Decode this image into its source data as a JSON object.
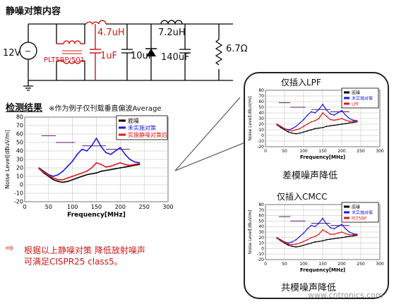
{
  "header": {
    "title": "静噪对策内容"
  },
  "circuit": {
    "source_label": "12V",
    "cmc_label": "PLT5BP/501",
    "l1_label": "4.7uH",
    "c1_label": "1uF",
    "c2_label": "10uF",
    "l2_label": "7.2uH",
    "c3_label": "140uF",
    "load_label": "6.7Ω",
    "colors": {
      "added_parts": "#d01818",
      "wire": "#000000"
    }
  },
  "results": {
    "title": "检测结果",
    "note": "※作为例子仅刊载垂直偏波Average",
    "conclusion_line1": "根据以上静噪对策 降低放射噪声",
    "conclusion_line2": "可满足CISPR25 class5。"
  },
  "callout": {
    "lpf_title": "仅插入LPF",
    "lpf_caption": "差模噪声降低",
    "cmcc_title": "仅插入CMCC",
    "cmcc_caption": "共模噪声降低"
  },
  "watermark": "www.cntronics.com",
  "chart_data": [
    {
      "type": "line",
      "title": "",
      "xlabel": "Frequency[MHz]",
      "ylabel": "Noise Level[dBuV/m]",
      "xlim": [
        0,
        300
      ],
      "ylim": [
        -20,
        80
      ],
      "xticks": [
        0,
        50,
        100,
        150,
        200,
        250,
        300
      ],
      "yticks": [
        -20,
        -10,
        0,
        10,
        20,
        30,
        40,
        50,
        60,
        70,
        80
      ],
      "limit_lines": [
        [
          35,
          65,
          58
        ],
        [
          65,
          105,
          50
        ],
        [
          120,
          170,
          46
        ],
        [
          170,
          220,
          42
        ]
      ],
      "series": [
        {
          "name": "底噪",
          "color": "#000000",
          "x": [
            30,
            40,
            50,
            60,
            70,
            80,
            90,
            100,
            110,
            120,
            130,
            140,
            150,
            160,
            170,
            180,
            190,
            200,
            210,
            220,
            230,
            240
          ],
          "y": [
            19,
            14,
            10,
            6,
            4,
            3,
            4,
            6,
            8,
            10,
            12,
            13,
            14,
            16,
            17,
            18,
            19,
            20,
            21,
            22,
            23,
            24
          ]
        },
        {
          "name": "未实施对策",
          "color": "#1a1ae6",
          "x": [
            30,
            40,
            50,
            60,
            70,
            80,
            90,
            100,
            110,
            120,
            130,
            140,
            150,
            160,
            170,
            180,
            190,
            200,
            210,
            220,
            230,
            240
          ],
          "y": [
            20,
            16,
            12,
            10,
            12,
            16,
            22,
            28,
            36,
            42,
            40,
            46,
            55,
            45,
            38,
            36,
            40,
            44,
            36,
            30,
            27,
            26
          ]
        },
        {
          "name": "实施静噪对策后",
          "color": "#e01818",
          "x": [
            30,
            40,
            50,
            60,
            70,
            80,
            90,
            100,
            110,
            120,
            130,
            140,
            150,
            160,
            170,
            180,
            190,
            200,
            210,
            220,
            230,
            240
          ],
          "y": [
            19,
            15,
            11,
            8,
            6,
            6,
            8,
            10,
            12,
            14,
            16,
            20,
            26,
            24,
            21,
            22,
            24,
            26,
            24,
            23,
            24,
            25
          ]
        }
      ]
    },
    {
      "type": "line",
      "title": "",
      "xlabel": "Frequency[MHz]",
      "ylabel": "Noise Level[dBuV/m]",
      "xlim": [
        0,
        300
      ],
      "ylim": [
        -20,
        80
      ],
      "xticks": [
        0,
        50,
        100,
        150,
        200,
        250,
        300
      ],
      "yticks": [
        -20,
        -10,
        0,
        10,
        20,
        30,
        40,
        50,
        60,
        70,
        80
      ],
      "limit_lines": [
        [
          35,
          65,
          58
        ],
        [
          65,
          105,
          50
        ],
        [
          120,
          170,
          46
        ],
        [
          170,
          220,
          42
        ]
      ],
      "series": [
        {
          "name": "底噪",
          "color": "#000000",
          "x": [
            30,
            40,
            50,
            60,
            70,
            80,
            90,
            100,
            110,
            120,
            130,
            140,
            150,
            160,
            170,
            180,
            190,
            200,
            210,
            220,
            230,
            240
          ],
          "y": [
            19,
            14,
            10,
            6,
            4,
            3,
            4,
            6,
            8,
            10,
            12,
            13,
            14,
            16,
            17,
            18,
            19,
            20,
            21,
            22,
            23,
            24
          ]
        },
        {
          "name": "未实施对策",
          "color": "#1a1ae6",
          "x": [
            30,
            40,
            50,
            60,
            70,
            80,
            90,
            100,
            110,
            120,
            130,
            140,
            150,
            160,
            170,
            180,
            190,
            200,
            210,
            220,
            230,
            240
          ],
          "y": [
            20,
            16,
            12,
            10,
            12,
            16,
            22,
            28,
            36,
            42,
            40,
            46,
            55,
            45,
            38,
            36,
            40,
            44,
            36,
            30,
            27,
            26
          ]
        },
        {
          "name": "LPF",
          "color": "#e01818",
          "x": [
            30,
            40,
            50,
            60,
            70,
            80,
            90,
            100,
            110,
            120,
            130,
            140,
            150,
            160,
            170,
            180,
            190,
            200,
            210,
            220,
            230,
            240
          ],
          "y": [
            20,
            16,
            12,
            9,
            8,
            10,
            12,
            16,
            20,
            24,
            26,
            30,
            40,
            34,
            28,
            27,
            28,
            30,
            27,
            25,
            25,
            25
          ]
        }
      ]
    },
    {
      "type": "line",
      "title": "",
      "xlabel": "Frequency[MHz]",
      "ylabel": "Noise Level[dBuV/m]",
      "xlim": [
        0,
        300
      ],
      "ylim": [
        -20,
        80
      ],
      "xticks": [
        0,
        50,
        100,
        150,
        200,
        250,
        300
      ],
      "yticks": [
        -20,
        -10,
        0,
        10,
        20,
        30,
        40,
        50,
        60,
        70,
        80
      ],
      "limit_lines": [
        [
          35,
          65,
          58
        ],
        [
          65,
          105,
          50
        ],
        [
          120,
          170,
          46
        ],
        [
          170,
          220,
          42
        ]
      ],
      "series": [
        {
          "name": "底噪",
          "color": "#000000",
          "x": [
            30,
            40,
            50,
            60,
            70,
            80,
            90,
            100,
            110,
            120,
            130,
            140,
            150,
            160,
            170,
            180,
            190,
            200,
            210,
            220,
            230,
            240
          ],
          "y": [
            19,
            14,
            10,
            6,
            4,
            3,
            4,
            6,
            8,
            10,
            12,
            13,
            14,
            16,
            17,
            18,
            19,
            20,
            21,
            22,
            23,
            24
          ]
        },
        {
          "name": "未实施对策",
          "color": "#1a1ae6",
          "x": [
            30,
            40,
            50,
            60,
            70,
            80,
            90,
            100,
            110,
            120,
            130,
            140,
            150,
            160,
            170,
            180,
            190,
            200,
            210,
            220,
            230,
            240
          ],
          "y": [
            20,
            16,
            12,
            10,
            12,
            16,
            22,
            28,
            36,
            42,
            40,
            46,
            55,
            45,
            38,
            36,
            40,
            44,
            36,
            30,
            27,
            26
          ]
        },
        {
          "name": "PLT5BP",
          "color": "#e01818",
          "x": [
            30,
            40,
            50,
            60,
            70,
            80,
            90,
            100,
            110,
            120,
            130,
            140,
            150,
            160,
            170,
            180,
            190,
            200,
            210,
            220,
            230,
            240
          ],
          "y": [
            19,
            15,
            11,
            8,
            7,
            8,
            10,
            13,
            16,
            20,
            22,
            26,
            34,
            30,
            26,
            26,
            28,
            30,
            27,
            25,
            25,
            25
          ]
        }
      ]
    }
  ]
}
